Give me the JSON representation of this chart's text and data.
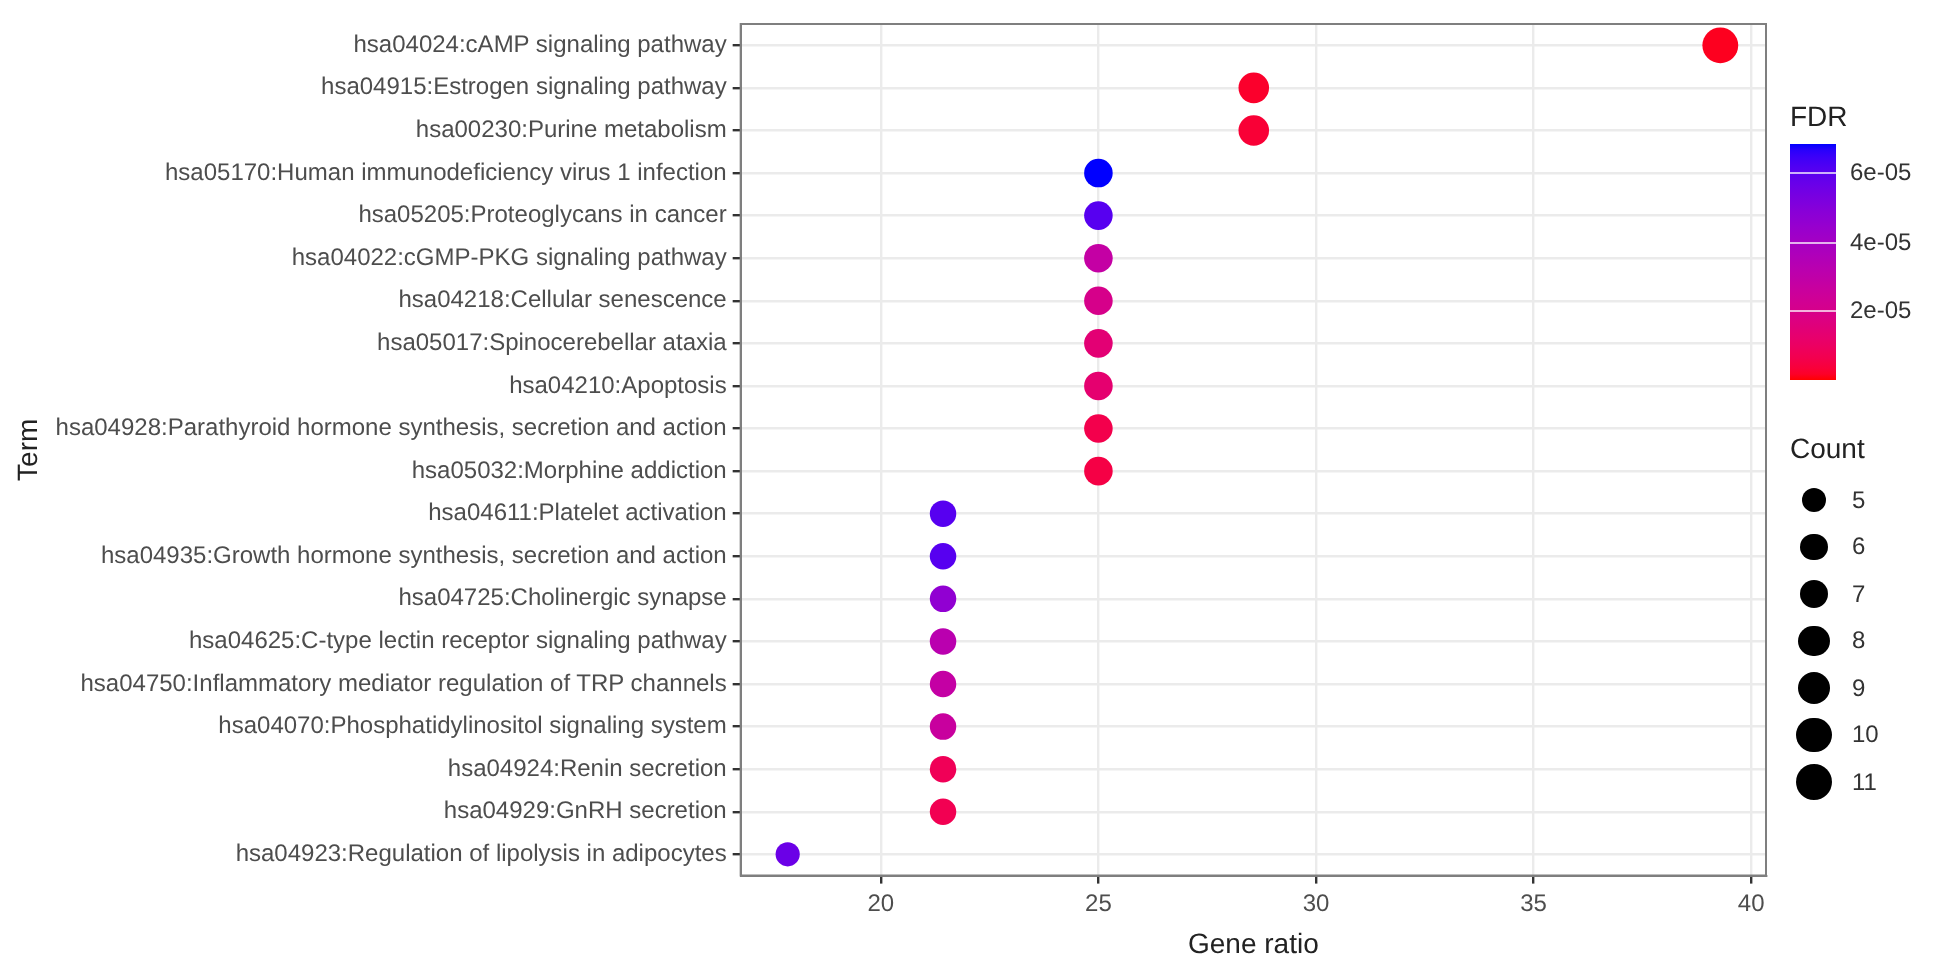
{
  "chart_data": {
    "type": "bubble",
    "orientation": "horizontal",
    "xlabel": "Gene ratio",
    "ylabel": "Term",
    "legend_title": "Count",
    "clabel": "FDR",
    "categories": [
      "hsa04024:cAMP signaling pathway",
      "hsa04915:Estrogen signaling pathway",
      "hsa00230:Purine metabolism",
      "hsa05170:Human immunodeficiency virus 1 infection",
      "hsa05205:Proteoglycans in cancer",
      "hsa04022:cGMP-PKG signaling pathway",
      "hsa04218:Cellular senescence",
      "hsa05017:Spinocerebellar ataxia",
      "hsa04210:Apoptosis",
      "hsa04928:Parathyroid hormone synthesis, secretion and action",
      "hsa05032:Morphine addiction",
      "hsa04611:Platelet activation",
      "hsa04935:Growth hormone synthesis, secretion and action",
      "hsa04725:Cholinergic synapse",
      "hsa04625:C-type lectin receptor signaling pathway",
      "hsa04750:Inflammatory mediator regulation of TRP channels",
      "hsa04070:Phosphatidylinositol signaling system",
      "hsa04924:Renin secretion",
      "hsa04929:GnRH secretion",
      "hsa04923:Regulation of lipolysis in adipocytes"
    ],
    "values": [
      39.29,
      28.57,
      28.57,
      25,
      25,
      25,
      25,
      25,
      25,
      25,
      25,
      21.43,
      21.43,
      21.43,
      21.43,
      21.43,
      21.43,
      21.43,
      21.43,
      17.86
    ],
    "sizes": [
      11,
      8,
      8,
      7,
      7,
      7,
      7,
      7,
      7,
      7,
      7,
      6,
      6,
      6,
      6,
      6,
      6,
      6,
      6,
      5
    ],
    "cvalues": [
      1e-06,
      2e-06,
      3e-06,
      6.8e-05,
      6e-05,
      2.8e-05,
      2e-05,
      1.4e-05,
      1.3e-05,
      6e-06,
      5e-06,
      6e-05,
      6e-05,
      4.6e-05,
      3.2e-05,
      2.8e-05,
      2.6e-05,
      8e-06,
      7e-06,
      5.6e-05
    ],
    "size_legend": [
      5,
      6,
      7,
      8,
      9,
      10,
      11
    ],
    "clim": [
      0,
      6.8e-05
    ],
    "cticks": [
      {
        "value": 2e-05,
        "label": "2e-05"
      },
      {
        "value": 4e-05,
        "label": "4e-05"
      },
      {
        "value": 6e-05,
        "label": "6e-05"
      }
    ],
    "xlim": [
      16.78,
      40.34
    ],
    "xticks": [
      20,
      25,
      30,
      35,
      40
    ],
    "grid": true
  }
}
